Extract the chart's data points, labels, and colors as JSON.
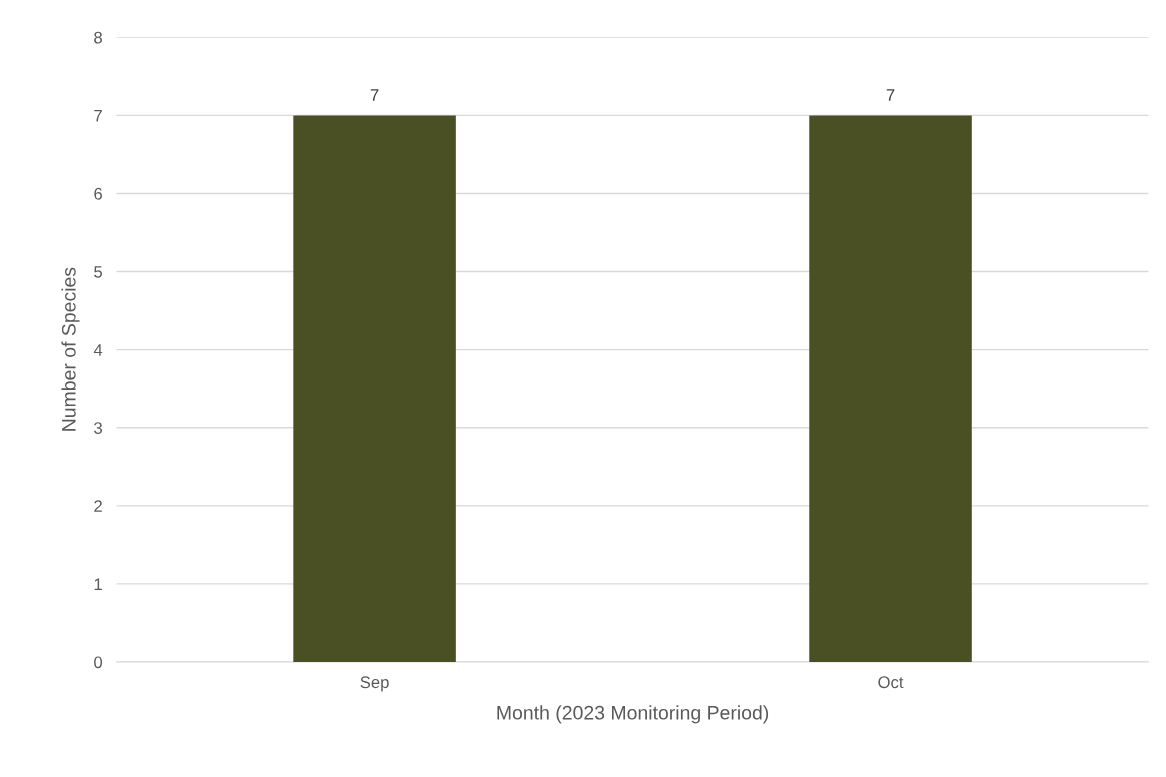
{
  "chart_data": {
    "type": "bar",
    "categories": [
      "Sep",
      "Oct"
    ],
    "values": [
      7,
      7
    ],
    "color": "#4a5023",
    "xlabel": "Month (2023 Monitoring Period)",
    "ylabel": "Number of Species",
    "ylim": [
      0,
      8
    ],
    "yticks": [
      0,
      1,
      2,
      3,
      4,
      5,
      6,
      7,
      8
    ],
    "grid": "y",
    "data_labels": true
  }
}
